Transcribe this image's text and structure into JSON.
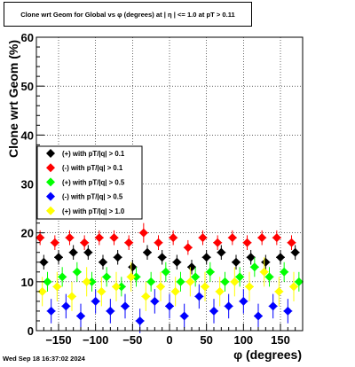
{
  "title": "Clone wrt Geom for Global vs φ (degrees) at | η | <= 1.0 at pT > 0.11",
  "footer": "Wed Sep 18 16:37:02 2024",
  "chart_data": {
    "type": "scatter",
    "title": "Clone wrt Geom for Global vs φ (degrees) at | η | <= 1.0 at pT > 0.11",
    "xlabel": "φ (degrees)",
    "ylabel": "Clone wrt Geom (%)",
    "xlim": [
      -180,
      180
    ],
    "ylim": [
      0,
      60
    ],
    "xticks": [
      -150,
      -100,
      -50,
      0,
      50,
      100,
      150
    ],
    "xtick_labels": [
      "−150",
      "−100",
      "−50",
      "0",
      "50",
      "100",
      "150"
    ],
    "yticks": [
      0,
      10,
      20,
      30,
      40,
      50,
      60
    ],
    "grid": true,
    "legend_position": "middle-left",
    "series": [
      {
        "name": "(+) with pT/|q| > 0.1",
        "color": "#000000",
        "x": [
          -170,
          -150,
          -130,
          -110,
          -90,
          -70,
          -50,
          -30,
          -10,
          10,
          30,
          50,
          70,
          90,
          110,
          130,
          150,
          170
        ],
        "y": [
          14,
          15,
          16,
          16,
          14,
          15,
          13,
          16,
          15,
          14,
          13,
          15,
          16,
          14,
          15,
          14,
          15,
          16
        ],
        "err": [
          1.5,
          1.5,
          1.5,
          1.5,
          1.5,
          1.5,
          1.5,
          1.5,
          1.5,
          1.5,
          1.5,
          1.5,
          1.5,
          1.5,
          1.5,
          1.5,
          1.5,
          1.5
        ]
      },
      {
        "name": "(-) with pT/|q| > 0.1",
        "color": "#ff0000",
        "x": [
          -175,
          -155,
          -135,
          -115,
          -95,
          -75,
          -55,
          -35,
          -15,
          5,
          25,
          45,
          65,
          85,
          105,
          125,
          145,
          165
        ],
        "y": [
          19,
          18,
          19,
          18,
          19,
          19,
          18,
          20,
          18,
          19,
          17,
          19,
          18,
          19,
          18,
          19,
          19,
          18
        ],
        "err": [
          1.5,
          1.5,
          1.5,
          1.5,
          1.5,
          1.5,
          1.5,
          2.0,
          1.5,
          1.5,
          1.5,
          1.5,
          1.5,
          1.5,
          1.5,
          1.5,
          1.5,
          1.5
        ]
      },
      {
        "name": "(+) with pT/|q| > 0.5",
        "color": "#00ff00",
        "x": [
          -165,
          -145,
          -125,
          -105,
          -85,
          -65,
          -45,
          -25,
          -5,
          15,
          35,
          55,
          75,
          95,
          115,
          135,
          155,
          175
        ],
        "y": [
          10,
          11,
          12,
          10,
          11,
          9,
          11,
          10,
          12,
          10,
          11,
          12,
          10,
          11,
          13,
          11,
          12,
          10
        ],
        "err": [
          2,
          2,
          2,
          2,
          2,
          2,
          2,
          2,
          2,
          2,
          2,
          2,
          2,
          2,
          2,
          2,
          2,
          2
        ]
      },
      {
        "name": "(-) with pT/|q| > 0.5",
        "color": "#0000ff",
        "x": [
          -160,
          -140,
          -120,
          -100,
          -80,
          -60,
          -40,
          -20,
          0,
          20,
          40,
          60,
          80,
          100,
          120,
          140,
          160
        ],
        "y": [
          4,
          5,
          3,
          6,
          4,
          5,
          2,
          6,
          5,
          3,
          7,
          4,
          5,
          6,
          3,
          5,
          4
        ],
        "err": [
          2.5,
          2.5,
          2.5,
          2.5,
          2.5,
          2.5,
          2.5,
          2.5,
          2.5,
          2.5,
          2.5,
          2.5,
          2.5,
          2.5,
          2.5,
          2.5,
          2.5
        ]
      },
      {
        "name": "(+) with pT/|q| > 1.0",
        "color": "#ffff00",
        "x": [
          -172,
          -152,
          -132,
          -112,
          -92,
          -72,
          -52,
          -32,
          -12,
          8,
          28,
          48,
          68,
          88,
          108,
          128,
          148,
          168
        ],
        "y": [
          8,
          9,
          7,
          10,
          8,
          9,
          11,
          7,
          9,
          8,
          10,
          9,
          8,
          10,
          9,
          12,
          8,
          9
        ],
        "err": [
          3,
          3,
          3,
          3,
          3,
          3,
          3,
          3,
          3,
          3,
          3,
          3,
          3,
          3,
          3,
          3,
          3,
          3
        ]
      }
    ]
  }
}
